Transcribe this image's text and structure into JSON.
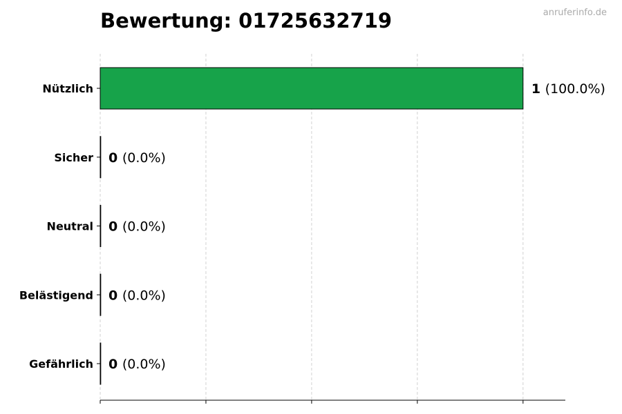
{
  "chart_data": {
    "type": "bar",
    "orientation": "horizontal",
    "title": "Bewertung: 01725632719",
    "watermark": "anruferinfo.de",
    "categories": [
      "Nützlich",
      "Sicher",
      "Neutral",
      "Belästigend",
      "Gefährlich"
    ],
    "values": [
      1,
      0,
      0,
      0,
      0
    ],
    "percent_labels": [
      "(100.0%)",
      "(0.0%)",
      "(0.0%)",
      "(0.0%)",
      "(0.0%)"
    ],
    "colors": [
      "#17a34a",
      "#17a34a",
      "#17a34a",
      "#17a34a",
      "#17a34a"
    ],
    "xlim": [
      0,
      1.1
    ],
    "xticks": [
      0,
      0.25,
      0.5,
      0.75,
      1.0
    ],
    "xtick_labels_shown": false,
    "grid": "vertical dashed",
    "xlabel": "",
    "ylabel": ""
  }
}
